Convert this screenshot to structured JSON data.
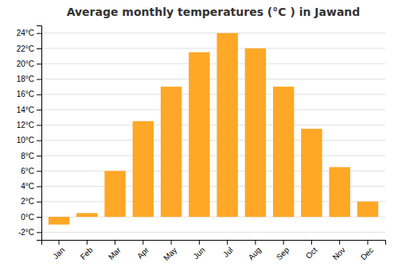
{
  "chart_data": {
    "type": "bar",
    "title": "Average monthly temperatures (°C ) in Jawand",
    "categories": [
      "Jan",
      "Feb",
      "Mar",
      "Apr",
      "May",
      "Jun",
      "Jul",
      "Aug",
      "Sep",
      "Oct",
      "Nov",
      "Dec"
    ],
    "values": [
      -1.0,
      0.5,
      6.0,
      12.5,
      17.0,
      21.5,
      24.0,
      22.0,
      17.0,
      11.5,
      6.5,
      2.0
    ],
    "color": "#FFA726",
    "ylim": [
      -3,
      25
    ],
    "yticks": [
      {
        "value": -2,
        "label": "-2°C"
      },
      {
        "value": 0,
        "label": "0°C"
      },
      {
        "value": 2,
        "label": "2°C"
      },
      {
        "value": 4,
        "label": "4°C"
      },
      {
        "value": 6,
        "label": "6°C"
      },
      {
        "value": 8,
        "label": "8°C"
      },
      {
        "value": 10,
        "label": "10°C"
      },
      {
        "value": 12,
        "label": "12°C"
      },
      {
        "value": 14,
        "label": "14°C"
      },
      {
        "value": 16,
        "label": "16°C"
      },
      {
        "value": 18,
        "label": "18°C"
      },
      {
        "value": 20,
        "label": "20°C"
      },
      {
        "value": 22,
        "label": "22°C"
      },
      {
        "value": 24,
        "label": "24°C"
      }
    ],
    "grid": true
  }
}
